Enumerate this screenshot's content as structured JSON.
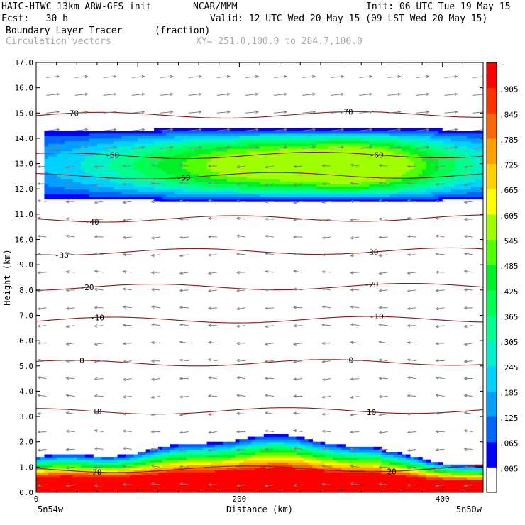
{
  "header": {
    "model_line": "HAIC-HIWC 13km ARW-GFS init",
    "org": "NCAR/MMM",
    "init": "Init: 06 UTC Tue 19 May 15",
    "fcst": "Fcst:   30 h",
    "valid": "Valid: 12 UTC Wed 20 May 15 (09 LST Wed 20 May 15)",
    "field_name": "Boundary Layer Tracer",
    "field_units": "(fraction)",
    "vector_name": "Circulation vectors",
    "cross_section": "XY= 251.0,100.0 to 284.7,100.0"
  },
  "colors": {
    "contour_line": "#8b1a1a",
    "vector": "#808080",
    "shading_levels": [
      "#ffffff",
      "#0000ff",
      "#0064ff",
      "#00a0ff",
      "#00d2ff",
      "#00f0c8",
      "#00ff8c",
      "#00ff50",
      "#00f028",
      "#50ff00",
      "#a0ff00",
      "#ffff00",
      "#ffd200",
      "#ffa000",
      "#ff6400",
      "#ff3200",
      "#ff0000"
    ]
  },
  "chart_data": {
    "type": "heatmap",
    "title": "Boundary Layer Tracer (fraction)",
    "xlabel": "Distance (km)",
    "ylabel": "Height (km)",
    "xlim": [
      0,
      440
    ],
    "ylim": [
      0,
      17
    ],
    "x_ticks": [
      0,
      200,
      400
    ],
    "y_ticks": [
      "0.0",
      "1.0",
      "2.0",
      "3.0",
      "4.0",
      "5.0",
      "6.0",
      "7.0",
      "8.0",
      "9.0",
      "10.0",
      "11.0",
      "12.0",
      "13.0",
      "14.0",
      "15.0",
      "16.0",
      "17.0"
    ],
    "x_end_labels": [
      "5n54w",
      "5n50w"
    ],
    "colorbar_labels": [
      ".005",
      ".065",
      ".125",
      ".185",
      ".245",
      ".305",
      ".365",
      ".425",
      ".485",
      ".545",
      ".605",
      ".665",
      ".725",
      ".785",
      ".845",
      ".905",
      "–"
    ],
    "isotherms": [
      {
        "label": "-70",
        "height": 14.9,
        "label_positions_km": [
          35,
          305
        ]
      },
      {
        "label": "-60",
        "height": 13.3,
        "label_positions_km": [
          75,
          335
        ]
      },
      {
        "label": "-50",
        "height": 12.5,
        "label_positions_km": [
          145
        ]
      },
      {
        "label": "-40",
        "height": 10.8,
        "label_positions_km": [
          55
        ]
      },
      {
        "label": "-30",
        "height": 9.5,
        "label_positions_km": [
          25,
          330
        ]
      },
      {
        "label": "-20",
        "height": 8.1,
        "label_positions_km": [
          50,
          330
        ]
      },
      {
        "label": "-10",
        "height": 6.8,
        "label_positions_km": [
          60,
          335
        ]
      },
      {
        "label": "0",
        "height": 5.1,
        "label_positions_km": [
          45,
          310
        ]
      },
      {
        "label": "10",
        "height": 3.2,
        "label_positions_km": [
          60,
          330
        ]
      },
      {
        "label": "20",
        "height": 0.9,
        "label_positions_km": [
          60,
          350
        ]
      }
    ],
    "anvil_layer": {
      "base_km": 11.5,
      "top_km": 14.4,
      "max_fraction": 0.65,
      "x_range_km": [
        0,
        440
      ]
    },
    "boundary_layer": {
      "top_km_left": 1.4,
      "top_km_peak": 2.2,
      "top_km_right": 1.0,
      "max_fraction": 1.0
    }
  }
}
